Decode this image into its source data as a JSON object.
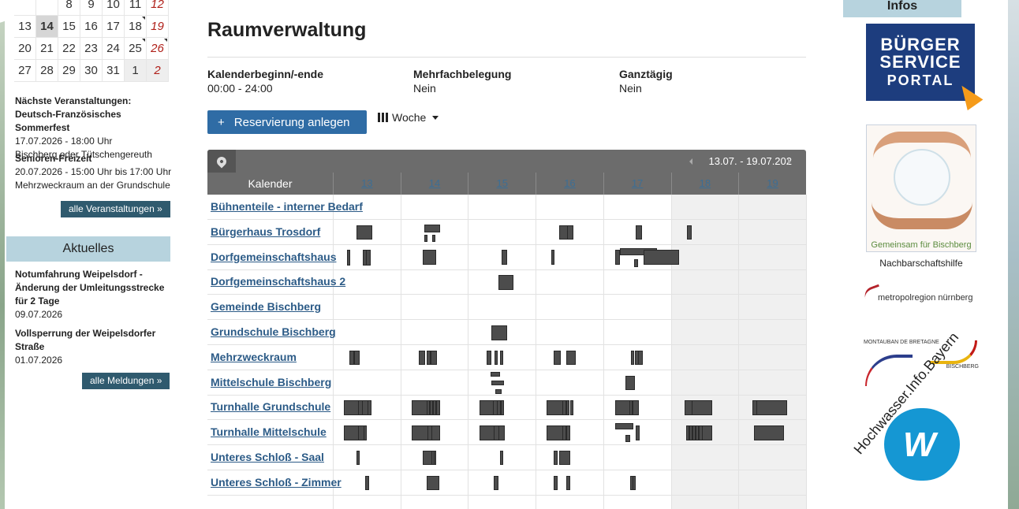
{
  "sidebar": {
    "calendar": {
      "rows": [
        [
          {
            "d": ""
          },
          {
            "d": ""
          },
          {
            "d": "8"
          },
          {
            "d": "9"
          },
          {
            "d": "10"
          },
          {
            "d": "11"
          },
          {
            "d": "12",
            "red": true
          }
        ],
        [
          {
            "d": "13"
          },
          {
            "d": "14",
            "today": true
          },
          {
            "d": "15"
          },
          {
            "d": "16"
          },
          {
            "d": "17"
          },
          {
            "d": "18",
            "tick": true
          },
          {
            "d": "19",
            "red": true
          }
        ],
        [
          {
            "d": "20"
          },
          {
            "d": "21"
          },
          {
            "d": "22"
          },
          {
            "d": "23"
          },
          {
            "d": "24"
          },
          {
            "d": "25",
            "tick": true
          },
          {
            "d": "26",
            "red": true,
            "tick": true
          }
        ],
        [
          {
            "d": "27"
          },
          {
            "d": "28"
          },
          {
            "d": "29"
          },
          {
            "d": "30"
          },
          {
            "d": "31"
          },
          {
            "d": "1",
            "other": true
          },
          {
            "d": "2",
            "red": true,
            "other": true
          }
        ]
      ]
    },
    "events_heading": "Nächste Veranstaltungen:",
    "events": [
      {
        "title": "Deutsch-Französisches Sommerfest",
        "line1": "17.07.2026 - 18:00 Uhr",
        "line2": "Bischberg oder Tütschengereuth"
      },
      {
        "title": "Senioren-Freizeit",
        "line1": "20.07.2026 - 15:00 Uhr bis 17:00 Uhr",
        "line2": "Mehrzweckraum an der Grundschule"
      }
    ],
    "events_button": "alle Veranstaltungen »",
    "news_heading": "Aktuelles",
    "news": [
      {
        "title": "Notumfahrung Weipelsdorf - Änderung der Umleitungsstrecke für 2 Tage",
        "date": "09.07.2026"
      },
      {
        "title": "Vollsperrung der Weipelsdorfer Straße",
        "date": "01.07.2026"
      }
    ],
    "news_button": "alle Meldungen »"
  },
  "main": {
    "title": "Raumverwaltung",
    "meta": [
      {
        "label": "Kalenderbeginn/-ende",
        "value": "00:00 - 24:00"
      },
      {
        "label": "Mehrfachbelegung",
        "value": "Nein"
      },
      {
        "label": "Ganztägig",
        "value": "Nein"
      }
    ],
    "create_button": "Reservierung anlegen",
    "create_plus": "+",
    "view_select": "Woche",
    "range": "13.07. - 19.07.202",
    "column_label": "Kalender",
    "days": [
      "13",
      "14",
      "15",
      "16",
      "17",
      "18",
      "19"
    ],
    "rooms": [
      {
        "name": "Bühnenteile - interner Bedarf",
        "events": []
      },
      {
        "name": "Bürgerhaus Trosdorf",
        "events": [
          [
            0,
            0.58,
            0.26,
            0.22,
            0.58
          ],
          [
            1,
            0.58,
            0.26,
            0.2,
            0.3
          ],
          [
            1,
            0.58,
            0.06,
            0.6,
            0.3
          ],
          [
            1,
            0.78,
            0.06,
            0.6,
            0.3
          ],
          [
            3,
            0.58,
            0.22,
            0.22,
            0.58
          ],
          [
            3,
            0.78,
            0.1,
            0.22,
            0.58
          ],
          [
            4,
            0.8,
            0.1,
            0.22,
            0.58
          ],
          [
            5,
            0.4,
            0.08,
            0.22,
            0.58
          ]
        ]
      },
      {
        "name": "Dorfgemeinschaftshaus",
        "events": [
          [
            0,
            0.35,
            0.04,
            0.2,
            0.62
          ],
          [
            0,
            0.74,
            0.06,
            0.2,
            0.62
          ],
          [
            0,
            0.82,
            0.08,
            0.2,
            0.62
          ],
          [
            1,
            0.55,
            0.22,
            0.2,
            0.6
          ],
          [
            2,
            0.82,
            0.1,
            0.2,
            0.6
          ],
          [
            3,
            0.38,
            0.05,
            0.2,
            0.6
          ],
          [
            4,
            0.3,
            0.08,
            0.2,
            0.6
          ],
          [
            4,
            0.42,
            0.6,
            0.13,
            0.3
          ],
          [
            4,
            0.76,
            0.06,
            0.58,
            0.3
          ],
          [
            4,
            1.0,
            0.58,
            0.2,
            0.6
          ]
        ]
      },
      {
        "name": "Dorfgemeinschaftshaus 2",
        "events": [
          [
            2,
            0.75,
            0.25,
            0.2,
            0.62
          ]
        ]
      },
      {
        "name": "Gemeinde Bischberg",
        "events": []
      },
      {
        "name": "Grundschule Bischberg",
        "events": [
          [
            2,
            0.58,
            0.26,
            0.22,
            0.6
          ]
        ]
      },
      {
        "name": "Mehrzweckraum",
        "events": [
          [
            0,
            0.4,
            0.08,
            0.22,
            0.58
          ],
          [
            0,
            0.52,
            0.1,
            0.22,
            0.58
          ],
          [
            1,
            0.45,
            0.1,
            0.22,
            0.58
          ],
          [
            1,
            0.65,
            0.06,
            0.22,
            0.58
          ],
          [
            1,
            0.75,
            0.1,
            0.22,
            0.58
          ],
          [
            2,
            0.45,
            0.08,
            0.22,
            0.58
          ],
          [
            2,
            0.66,
            0.05,
            0.22,
            0.58
          ],
          [
            2,
            0.78,
            0.05,
            0.22,
            0.58
          ],
          [
            3,
            0.45,
            0.12,
            0.22,
            0.58
          ],
          [
            3,
            0.75,
            0.16,
            0.22,
            0.58
          ],
          [
            4,
            0.68,
            0.06,
            0.22,
            0.58
          ],
          [
            4,
            0.78,
            0.06,
            0.22,
            0.58
          ],
          [
            4,
            0.86,
            0.08,
            0.22,
            0.58
          ]
        ]
      },
      {
        "name": "Mittelschule Bischberg",
        "events": [
          [
            2,
            0.55,
            0.16,
            0.06,
            0.2
          ],
          [
            2,
            0.58,
            0.2,
            0.42,
            0.2
          ],
          [
            2,
            0.68,
            0.1,
            0.76,
            0.2
          ],
          [
            4,
            0.55,
            0.16,
            0.22,
            0.58
          ]
        ]
      },
      {
        "name": "Turnhalle Grundschule",
        "events": [
          [
            0,
            0.28,
            0.34,
            0.22,
            0.58
          ],
          [
            0,
            0.62,
            0.1,
            0.22,
            0.58
          ],
          [
            0,
            0.72,
            0.12,
            0.22,
            0.58
          ],
          [
            0,
            0.86,
            0.06,
            0.22,
            0.58
          ],
          [
            1,
            0.28,
            0.36,
            0.22,
            0.58
          ],
          [
            1,
            0.64,
            0.05,
            0.22,
            0.58
          ],
          [
            1,
            0.72,
            0.06,
            0.22,
            0.58
          ],
          [
            1,
            0.8,
            0.06,
            0.22,
            0.58
          ],
          [
            1,
            0.88,
            0.06,
            0.22,
            0.58
          ],
          [
            2,
            0.28,
            0.34,
            0.22,
            0.58
          ],
          [
            2,
            0.62,
            0.1,
            0.22,
            0.58
          ],
          [
            2,
            0.72,
            0.06,
            0.22,
            0.58
          ],
          [
            2,
            0.8,
            0.06,
            0.22,
            0.58
          ],
          [
            3,
            0.28,
            0.36,
            0.22,
            0.58
          ],
          [
            3,
            0.66,
            0.06,
            0.22,
            0.58
          ],
          [
            3,
            0.75,
            0.06,
            0.22,
            0.58
          ],
          [
            3,
            0.85,
            0.05,
            0.22,
            0.58
          ],
          [
            4,
            0.3,
            0.3,
            0.22,
            0.58
          ],
          [
            4,
            0.65,
            0.05,
            0.22,
            0.58
          ],
          [
            4,
            0.73,
            0.1,
            0.22,
            0.58
          ],
          [
            5,
            0.35,
            0.12,
            0.22,
            0.58
          ],
          [
            5,
            0.52,
            0.34,
            0.22,
            0.58
          ],
          [
            6,
            0.35,
            0.08,
            0.22,
            0.58
          ],
          [
            6,
            0.45,
            0.5,
            0.22,
            0.58
          ]
        ]
      },
      {
        "name": "Turnhalle Mittelschule",
        "events": [
          [
            0,
            0.28,
            0.34,
            0.22,
            0.58
          ],
          [
            0,
            0.62,
            0.1,
            0.22,
            0.58
          ],
          [
            0,
            0.75,
            0.06,
            0.22,
            0.58
          ],
          [
            1,
            0.28,
            0.35,
            0.22,
            0.58
          ],
          [
            1,
            0.66,
            0.08,
            0.22,
            0.58
          ],
          [
            1,
            0.76,
            0.14,
            0.22,
            0.58
          ],
          [
            2,
            0.28,
            0.35,
            0.22,
            0.58
          ],
          [
            2,
            0.64,
            0.1,
            0.22,
            0.58
          ],
          [
            2,
            0.76,
            0.1,
            0.22,
            0.58
          ],
          [
            3,
            0.28,
            0.36,
            0.22,
            0.58
          ],
          [
            3,
            0.66,
            0.06,
            0.22,
            0.58
          ],
          [
            3,
            0.76,
            0.06,
            0.22,
            0.58
          ],
          [
            4,
            0.3,
            0.3,
            0.12,
            0.26
          ],
          [
            4,
            0.55,
            0.08,
            0.6,
            0.26
          ],
          [
            4,
            0.8,
            0.06,
            0.22,
            0.58
          ],
          [
            5,
            0.38,
            0.05,
            0.22,
            0.58
          ],
          [
            5,
            0.45,
            0.06,
            0.22,
            0.58
          ],
          [
            5,
            0.53,
            0.06,
            0.22,
            0.58
          ],
          [
            5,
            0.61,
            0.06,
            0.22,
            0.58
          ],
          [
            5,
            0.69,
            0.06,
            0.22,
            0.58
          ],
          [
            5,
            0.76,
            0.18,
            0.22,
            0.58
          ],
          [
            6,
            0.38,
            0.5,
            0.22,
            0.58
          ]
        ]
      },
      {
        "name": "Unteres Schloß - Saal",
        "events": [
          [
            0,
            0.58,
            0.06,
            0.22,
            0.58
          ],
          [
            1,
            0.55,
            0.22,
            0.22,
            0.58
          ],
          [
            1,
            0.76,
            0.06,
            0.22,
            0.58
          ],
          [
            2,
            0.78,
            0.05,
            0.22,
            0.58
          ],
          [
            3,
            0.45,
            0.06,
            0.22,
            0.58
          ],
          [
            3,
            0.58,
            0.18,
            0.22,
            0.58
          ]
        ]
      },
      {
        "name": "Unteres Schloß - Zimmer",
        "events": [
          [
            0,
            0.8,
            0.06,
            0.22,
            0.58
          ],
          [
            1,
            0.65,
            0.2,
            0.22,
            0.58
          ],
          [
            2,
            0.64,
            0.08,
            0.22,
            0.58
          ],
          [
            3,
            0.45,
            0.06,
            0.22,
            0.58
          ],
          [
            3,
            0.76,
            0.06,
            0.22,
            0.58
          ],
          [
            4,
            0.66,
            0.06,
            0.22,
            0.58
          ],
          [
            4,
            0.72,
            0.06,
            0.22,
            0.58
          ]
        ]
      }
    ]
  },
  "right": {
    "infos_heading": "Infos",
    "bsp_line1": "BÜRGER",
    "bsp_line2": "SERVICE",
    "bsp_line3": "PORTAL",
    "hands_caption": "Gemeinsam für Bischberg",
    "neighborhood_label": "Nachbarschaftshilfe",
    "metro_label": "metropolregion nürnberg",
    "partner_left": "MONTAUBAN DE BRETAGNE",
    "partner_right": "BISCHBERG",
    "hochwasser_text": "Hochwasser.Info.Bayern",
    "hochwasser_mark": "W"
  },
  "colors": {
    "accent": "#2f6ca5",
    "sidebar_button": "#2f5a6e",
    "box_heading": "#b7d3de",
    "event_block": "#4c4c4c",
    "grid_header": "#6c6c6c",
    "link": "#2c5b87",
    "weekend_bg": "#f0f0f0"
  }
}
